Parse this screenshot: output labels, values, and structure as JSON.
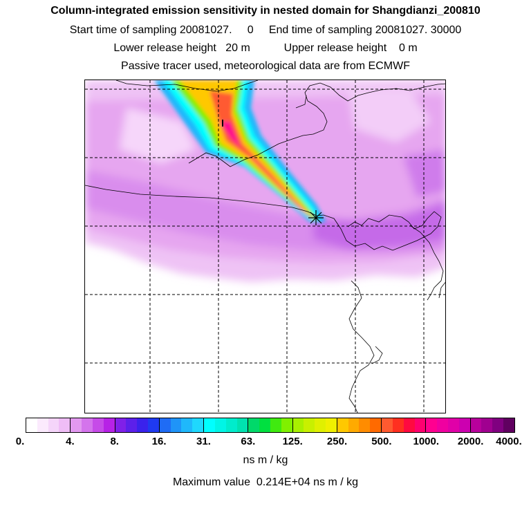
{
  "title": "Column-integrated emission sensitivity in nested domain for Shangdianzi_200810",
  "sampling": "Start time of sampling 20081027.     0     End time of sampling 20081027. 30000",
  "release": "Lower release height   20 m           Upper release height    0 m",
  "tracer": "Passive tracer used, meteorological data are from ECMWF",
  "colorbar": {
    "ticks": [
      "0.",
      "4.",
      "8.",
      "16.",
      "31.",
      "63.",
      "125.",
      "250.",
      "500.",
      "1000.",
      "2000.",
      "4000."
    ],
    "segments": [
      [
        "#ffffff",
        "#fbeafd",
        "#f5d5fa",
        "#efbdf6"
      ],
      [
        "#e299f0",
        "#d474ec",
        "#c64be8",
        "#b722e6"
      ],
      [
        "#8020e8",
        "#5c20ea",
        "#3a22ec",
        "#1f3af0"
      ],
      [
        "#1f6cf5",
        "#1f94f8",
        "#1fb8fb",
        "#1fd8fd"
      ],
      [
        "#00ffff",
        "#00f5e6",
        "#00eccc",
        "#00e2b0"
      ],
      [
        "#00d96a",
        "#00e040",
        "#40ea10",
        "#80f000"
      ],
      [
        "#a8f000",
        "#c8f000",
        "#e0f000",
        "#f0ef00"
      ],
      [
        "#ffc800",
        "#ffaa00",
        "#ff8c00",
        "#ff6a00"
      ],
      [
        "#ff5a30",
        "#ff3020",
        "#ff0a40",
        "#ff0070"
      ],
      [
        "#ff0090",
        "#f000a0",
        "#e000a8",
        "#cc00b0"
      ],
      [
        "#b8009c",
        "#a00090",
        "#800080",
        "#600060"
      ]
    ],
    "units": "ns m / kg"
  },
  "max_value": "Maximum value  0.214E+04 ns m / kg",
  "map": {
    "receptor_symbol": "✶"
  }
}
